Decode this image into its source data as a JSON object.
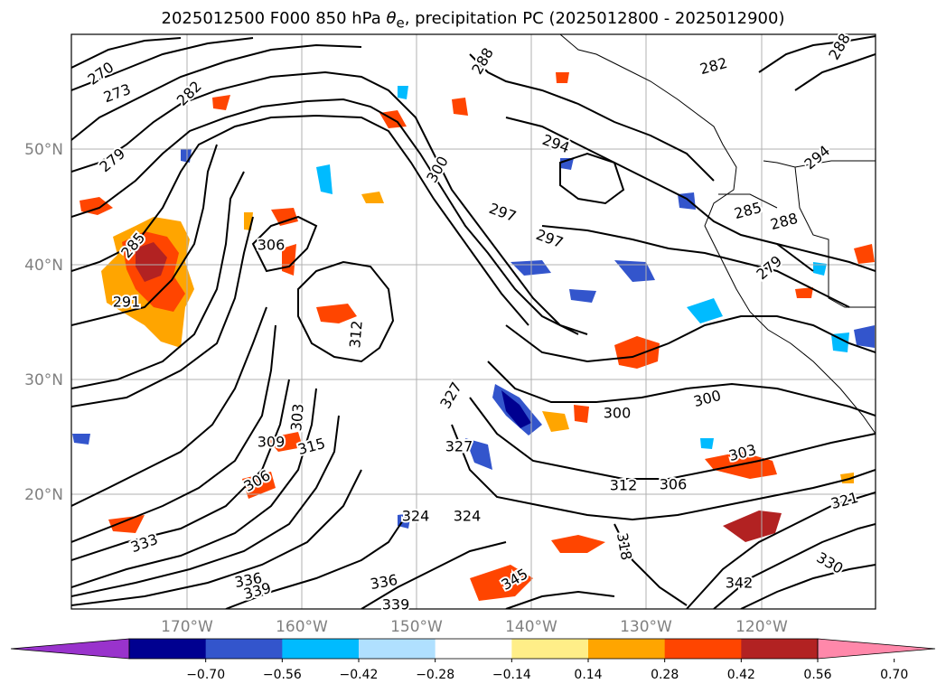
{
  "title": "2025012500 F000 850 hPa θe, precipitation PC (2025012800 - 2025012900)",
  "title_parts": {
    "prefix": "2025012500 F000 850 hPa ",
    "theta": "θ",
    "sub": "e",
    "suffix": ", precipitation PC (2025012800 - 2025012900)"
  },
  "lat_labels": [
    "50°N",
    "40°N",
    "30°N",
    "20°N"
  ],
  "lon_labels": [
    "170°W",
    "160°W",
    "150°W",
    "140°W",
    "130°W",
    "120°W"
  ],
  "colorbar": {
    "ticks": [
      "−0.70",
      "−0.56",
      "−0.42",
      "−0.28",
      "−0.14",
      "0.14",
      "0.28",
      "0.42",
      "0.56",
      "0.70"
    ],
    "colors": [
      "#9933cc",
      "#000090",
      "#3355cc",
      "#00bbff",
      "#b0e0ff",
      "#ffffff",
      "#ffee88",
      "#ffa500",
      "#ff4500",
      "#b22222",
      "#ff88aa"
    ]
  },
  "contour_labels": [
    {
      "t": "270"
    },
    {
      "t": "273"
    },
    {
      "t": "279"
    },
    {
      "t": "282"
    },
    {
      "t": "285"
    },
    {
      "t": "288"
    },
    {
      "t": "291"
    },
    {
      "t": "294"
    },
    {
      "t": "294"
    },
    {
      "t": "297"
    },
    {
      "t": "297"
    },
    {
      "t": "300"
    },
    {
      "t": "300"
    },
    {
      "t": "300"
    },
    {
      "t": "303"
    },
    {
      "t": "303"
    },
    {
      "t": "306"
    },
    {
      "t": "306"
    },
    {
      "t": "306"
    },
    {
      "t": "309"
    },
    {
      "t": "312"
    },
    {
      "t": "312"
    },
    {
      "t": "315"
    },
    {
      "t": "318"
    },
    {
      "t": "321"
    },
    {
      "t": "324"
    },
    {
      "t": "324"
    },
    {
      "t": "327"
    },
    {
      "t": "327"
    },
    {
      "t": "330"
    },
    {
      "t": "333"
    },
    {
      "t": "336"
    },
    {
      "t": "336"
    },
    {
      "t": "339"
    },
    {
      "t": "339"
    },
    {
      "t": "342"
    },
    {
      "t": "345"
    },
    {
      "t": "285"
    },
    {
      "t": "288"
    },
    {
      "t": "279"
    },
    {
      "t": "282"
    },
    {
      "t": "288"
    }
  ]
}
